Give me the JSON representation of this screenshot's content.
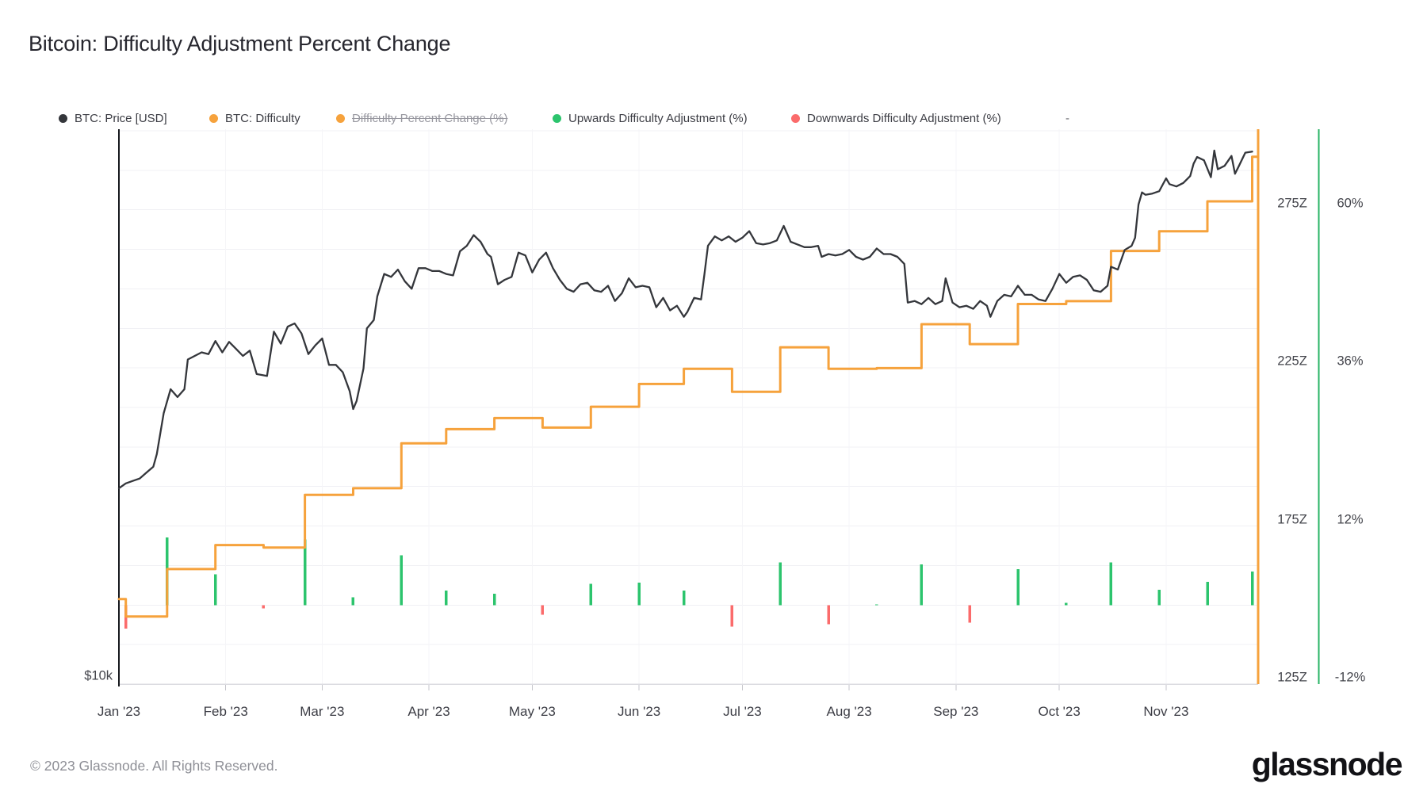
{
  "title": "Bitcoin: Difficulty Adjustment Percent Change",
  "footer": "© 2023 Glassnode. All Rights Reserved.",
  "logo_text": "glassnode",
  "colors": {
    "price_line": "#34363b",
    "difficulty_line": "#f6a23c",
    "upward_bar": "#2cc46d",
    "downward_bar": "#fb6b6b",
    "percent_axis_line": "#27b364",
    "grid": "#f0f0f4",
    "month_grid": "#f5f5f8",
    "bottom_axis": "#dcdce1",
    "left_axis": "#16181d",
    "tick": "#c6c6cc"
  },
  "legend": [
    {
      "label": "BTC: Price [USD]",
      "color": "#34363b",
      "struck": false
    },
    {
      "label": "BTC: Difficulty",
      "color": "#f6a23c",
      "struck": false
    },
    {
      "label": "Difficulty Percent Change (%)",
      "color": "#f6a23c",
      "struck": true
    },
    {
      "label": "Upwards Difficulty Adjustment (%)",
      "color": "#2cc46d",
      "struck": false
    },
    {
      "label": "Downwards Difficulty Adjustment (%)",
      "color": "#fb6b6b",
      "struck": false
    },
    {
      "label": "-",
      "color": null,
      "struck": false
    }
  ],
  "axes": {
    "x_labels": [
      "Jan '23",
      "Feb '23",
      "Mar '23",
      "Apr '23",
      "May '23",
      "Jun '23",
      "Jul '23",
      "Aug '23",
      "Sep '23",
      "Oct '23",
      "Nov '23"
    ],
    "right_z_labels": [
      "275Z",
      "225Z",
      "175Z",
      "125Z"
    ],
    "right_z_ticks": [
      275,
      225,
      175,
      125
    ],
    "right_pct_labels": [
      "60%",
      "36%",
      "12%",
      "-12%"
    ],
    "right_pct_ticks": [
      60,
      36,
      12,
      -12
    ],
    "left_label": "$10k"
  },
  "chart_data": {
    "type": "mixed",
    "x_range": [
      "2023-01-01",
      "2023-11-27"
    ],
    "grid": "horizontal-faint",
    "legend_position": "top",
    "price_axis": {
      "scale": "log",
      "bottom_label": "$10k",
      "unit": "USD"
    },
    "difficulty_axis": {
      "unit": "Z (zetahash)",
      "ticks": [
        125,
        175,
        225,
        275
      ],
      "range": [
        125,
        287
      ]
    },
    "percent_axis": {
      "unit": "%",
      "ticks": [
        -12,
        12,
        36,
        60
      ],
      "range": [
        -12,
        60
      ],
      "zero_baseline": true
    },
    "series": [
      {
        "name": "BTC: Price [USD]",
        "type": "line",
        "unit": "USD",
        "visible": true,
        "points": [
          [
            "01-01",
            16550
          ],
          [
            "01-03",
            16750
          ],
          [
            "01-05",
            16850
          ],
          [
            "01-07",
            16950
          ],
          [
            "01-09",
            17200
          ],
          [
            "01-11",
            17450
          ],
          [
            "01-12",
            18000
          ],
          [
            "01-14",
            19900
          ],
          [
            "01-16",
            21100
          ],
          [
            "01-18",
            20700
          ],
          [
            "01-20",
            21100
          ],
          [
            "01-21",
            22700
          ],
          [
            "01-23",
            22900
          ],
          [
            "01-25",
            23100
          ],
          [
            "01-27",
            23000
          ],
          [
            "01-29",
            23750
          ],
          [
            "01-31",
            23100
          ],
          [
            "02-02",
            23700
          ],
          [
            "02-04",
            23300
          ],
          [
            "02-06",
            22900
          ],
          [
            "02-08",
            23200
          ],
          [
            "02-10",
            21900
          ],
          [
            "02-13",
            21800
          ],
          [
            "02-15",
            24300
          ],
          [
            "02-17",
            23600
          ],
          [
            "02-19",
            24600
          ],
          [
            "02-21",
            24800
          ],
          [
            "02-23",
            24200
          ],
          [
            "02-25",
            23000
          ],
          [
            "02-27",
            23500
          ],
          [
            "03-01",
            23900
          ],
          [
            "03-03",
            22400
          ],
          [
            "03-05",
            22400
          ],
          [
            "03-07",
            22000
          ],
          [
            "03-09",
            21000
          ],
          [
            "03-10",
            20100
          ],
          [
            "03-11",
            20500
          ],
          [
            "03-13",
            22200
          ],
          [
            "03-14",
            24500
          ],
          [
            "03-16",
            25000
          ],
          [
            "03-17",
            26500
          ],
          [
            "03-19",
            28000
          ],
          [
            "03-21",
            27800
          ],
          [
            "03-23",
            28300
          ],
          [
            "03-25",
            27500
          ],
          [
            "03-27",
            27000
          ],
          [
            "03-29",
            28400
          ],
          [
            "03-31",
            28400
          ],
          [
            "04-02",
            28200
          ],
          [
            "04-04",
            28200
          ],
          [
            "04-06",
            28000
          ],
          [
            "04-08",
            27900
          ],
          [
            "04-10",
            29600
          ],
          [
            "04-12",
            30000
          ],
          [
            "04-14",
            30800
          ],
          [
            "04-16",
            30300
          ],
          [
            "04-18",
            29400
          ],
          [
            "04-19",
            29200
          ],
          [
            "04-21",
            27300
          ],
          [
            "04-23",
            27600
          ],
          [
            "04-25",
            27800
          ],
          [
            "04-27",
            29500
          ],
          [
            "04-29",
            29300
          ],
          [
            "05-01",
            28100
          ],
          [
            "05-03",
            29000
          ],
          [
            "05-05",
            29500
          ],
          [
            "05-07",
            28400
          ],
          [
            "05-09",
            27600
          ],
          [
            "05-11",
            27000
          ],
          [
            "05-13",
            26800
          ],
          [
            "05-15",
            27300
          ],
          [
            "05-17",
            27400
          ],
          [
            "05-19",
            26900
          ],
          [
            "05-21",
            26800
          ],
          [
            "05-23",
            27200
          ],
          [
            "05-25",
            26200
          ],
          [
            "05-27",
            26700
          ],
          [
            "05-29",
            27700
          ],
          [
            "05-31",
            27100
          ],
          [
            "06-02",
            27200
          ],
          [
            "06-04",
            27100
          ],
          [
            "06-06",
            25800
          ],
          [
            "06-08",
            26400
          ],
          [
            "06-10",
            25600
          ],
          [
            "06-12",
            25900
          ],
          [
            "06-14",
            25200
          ],
          [
            "06-15",
            25500
          ],
          [
            "06-17",
            26400
          ],
          [
            "06-19",
            26300
          ],
          [
            "06-20",
            28000
          ],
          [
            "06-21",
            30000
          ],
          [
            "06-23",
            30700
          ],
          [
            "06-25",
            30400
          ],
          [
            "06-27",
            30700
          ],
          [
            "06-29",
            30300
          ],
          [
            "07-01",
            30600
          ],
          [
            "07-03",
            31100
          ],
          [
            "07-05",
            30200
          ],
          [
            "07-07",
            30100
          ],
          [
            "07-09",
            30200
          ],
          [
            "07-11",
            30400
          ],
          [
            "07-13",
            31500
          ],
          [
            "07-15",
            30300
          ],
          [
            "07-17",
            30100
          ],
          [
            "07-19",
            29900
          ],
          [
            "07-21",
            29900
          ],
          [
            "07-23",
            30000
          ],
          [
            "07-24",
            29200
          ],
          [
            "07-26",
            29400
          ],
          [
            "07-28",
            29300
          ],
          [
            "07-30",
            29400
          ],
          [
            "08-01",
            29700
          ],
          [
            "08-03",
            29200
          ],
          [
            "08-05",
            29000
          ],
          [
            "08-07",
            29200
          ],
          [
            "08-09",
            29800
          ],
          [
            "08-11",
            29400
          ],
          [
            "08-13",
            29400
          ],
          [
            "08-15",
            29200
          ],
          [
            "08-17",
            28700
          ],
          [
            "08-18",
            26100
          ],
          [
            "08-20",
            26200
          ],
          [
            "08-22",
            26000
          ],
          [
            "08-24",
            26400
          ],
          [
            "08-26",
            26000
          ],
          [
            "08-28",
            26200
          ],
          [
            "08-29",
            27700
          ],
          [
            "08-31",
            26100
          ],
          [
            "09-02",
            25800
          ],
          [
            "09-04",
            25900
          ],
          [
            "09-06",
            25700
          ],
          [
            "09-08",
            26200
          ],
          [
            "09-10",
            25900
          ],
          [
            "09-11",
            25200
          ],
          [
            "09-13",
            26200
          ],
          [
            "09-15",
            26600
          ],
          [
            "09-17",
            26500
          ],
          [
            "09-19",
            27200
          ],
          [
            "09-21",
            26600
          ],
          [
            "09-23",
            26600
          ],
          [
            "09-25",
            26300
          ],
          [
            "09-27",
            26200
          ],
          [
            "09-29",
            27000
          ],
          [
            "10-01",
            28000
          ],
          [
            "10-03",
            27400
          ],
          [
            "10-05",
            27800
          ],
          [
            "10-07",
            27900
          ],
          [
            "10-09",
            27600
          ],
          [
            "10-11",
            26900
          ],
          [
            "10-13",
            26800
          ],
          [
            "10-15",
            27200
          ],
          [
            "10-16",
            28500
          ],
          [
            "10-18",
            28300
          ],
          [
            "10-20",
            29700
          ],
          [
            "10-22",
            30000
          ],
          [
            "10-23",
            30600
          ],
          [
            "10-24",
            33200
          ],
          [
            "10-25",
            34200
          ],
          [
            "10-26",
            34000
          ],
          [
            "10-28",
            34100
          ],
          [
            "10-30",
            34300
          ],
          [
            "11-01",
            35400
          ],
          [
            "11-02",
            34900
          ],
          [
            "11-04",
            34700
          ],
          [
            "11-06",
            35000
          ],
          [
            "11-08",
            35600
          ],
          [
            "11-09",
            36700
          ],
          [
            "11-10",
            37300
          ],
          [
            "11-12",
            37000
          ],
          [
            "11-14",
            35500
          ],
          [
            "11-15",
            37900
          ],
          [
            "11-16",
            36200
          ],
          [
            "11-18",
            36500
          ],
          [
            "11-20",
            37400
          ],
          [
            "11-21",
            35800
          ],
          [
            "11-22",
            36400
          ],
          [
            "11-24",
            37700
          ],
          [
            "11-26",
            37800
          ]
        ]
      },
      {
        "name": "BTC: Difficulty",
        "type": "step",
        "unit": "Z",
        "visible": true,
        "points": [
          [
            "01-01",
            151.9
          ],
          [
            "01-03",
            146.4
          ],
          [
            "01-15",
            161.4
          ],
          [
            "01-29",
            169.0
          ],
          [
            "02-12",
            168.2
          ],
          [
            "02-24",
            184.9
          ],
          [
            "03-10",
            187.0
          ],
          [
            "03-24",
            201.2
          ],
          [
            "04-06",
            205.7
          ],
          [
            "04-20",
            209.2
          ],
          [
            "05-04",
            206.2
          ],
          [
            "05-18",
            212.8
          ],
          [
            "06-01",
            220.0
          ],
          [
            "06-14",
            224.8
          ],
          [
            "06-28",
            217.5
          ],
          [
            "07-12",
            231.6
          ],
          [
            "07-26",
            224.8
          ],
          [
            "08-09",
            225.0
          ],
          [
            "08-22",
            238.9
          ],
          [
            "09-05",
            232.6
          ],
          [
            "09-19",
            245.3
          ],
          [
            "10-03",
            246.2
          ],
          [
            "10-16",
            262.1
          ],
          [
            "10-30",
            268.3
          ],
          [
            "11-13",
            277.8
          ],
          [
            "11-26",
            291.9
          ]
        ]
      },
      {
        "name": "Difficulty Percent Change (%)",
        "type": "line",
        "unit": "%",
        "visible": false,
        "points": []
      },
      {
        "name": "Upwards Difficulty Adjustment (%)",
        "type": "bar",
        "unit": "%",
        "visible": true,
        "points": [
          [
            "01-15",
            10.26
          ],
          [
            "01-29",
            4.68
          ],
          [
            "02-24",
            9.95
          ],
          [
            "03-10",
            1.16
          ],
          [
            "03-24",
            7.56
          ],
          [
            "04-06",
            2.23
          ],
          [
            "04-20",
            1.72
          ],
          [
            "05-18",
            3.22
          ],
          [
            "06-01",
            3.39
          ],
          [
            "06-14",
            2.18
          ],
          [
            "07-12",
            6.45
          ],
          [
            "08-09",
            0.12
          ],
          [
            "08-22",
            6.17
          ],
          [
            "09-19",
            5.48
          ],
          [
            "10-03",
            0.35
          ],
          [
            "10-16",
            6.47
          ],
          [
            "10-30",
            2.35
          ],
          [
            "11-13",
            3.55
          ],
          [
            "11-26",
            5.07
          ]
        ]
      },
      {
        "name": "Downwards Difficulty Adjustment (%)",
        "type": "bar",
        "unit": "%",
        "visible": true,
        "points": [
          [
            "01-03",
            -3.59
          ],
          [
            "02-12",
            -0.49
          ],
          [
            "05-04",
            -1.45
          ],
          [
            "06-28",
            -3.26
          ],
          [
            "07-26",
            -2.94
          ],
          [
            "09-05",
            -2.65
          ]
        ]
      }
    ]
  }
}
